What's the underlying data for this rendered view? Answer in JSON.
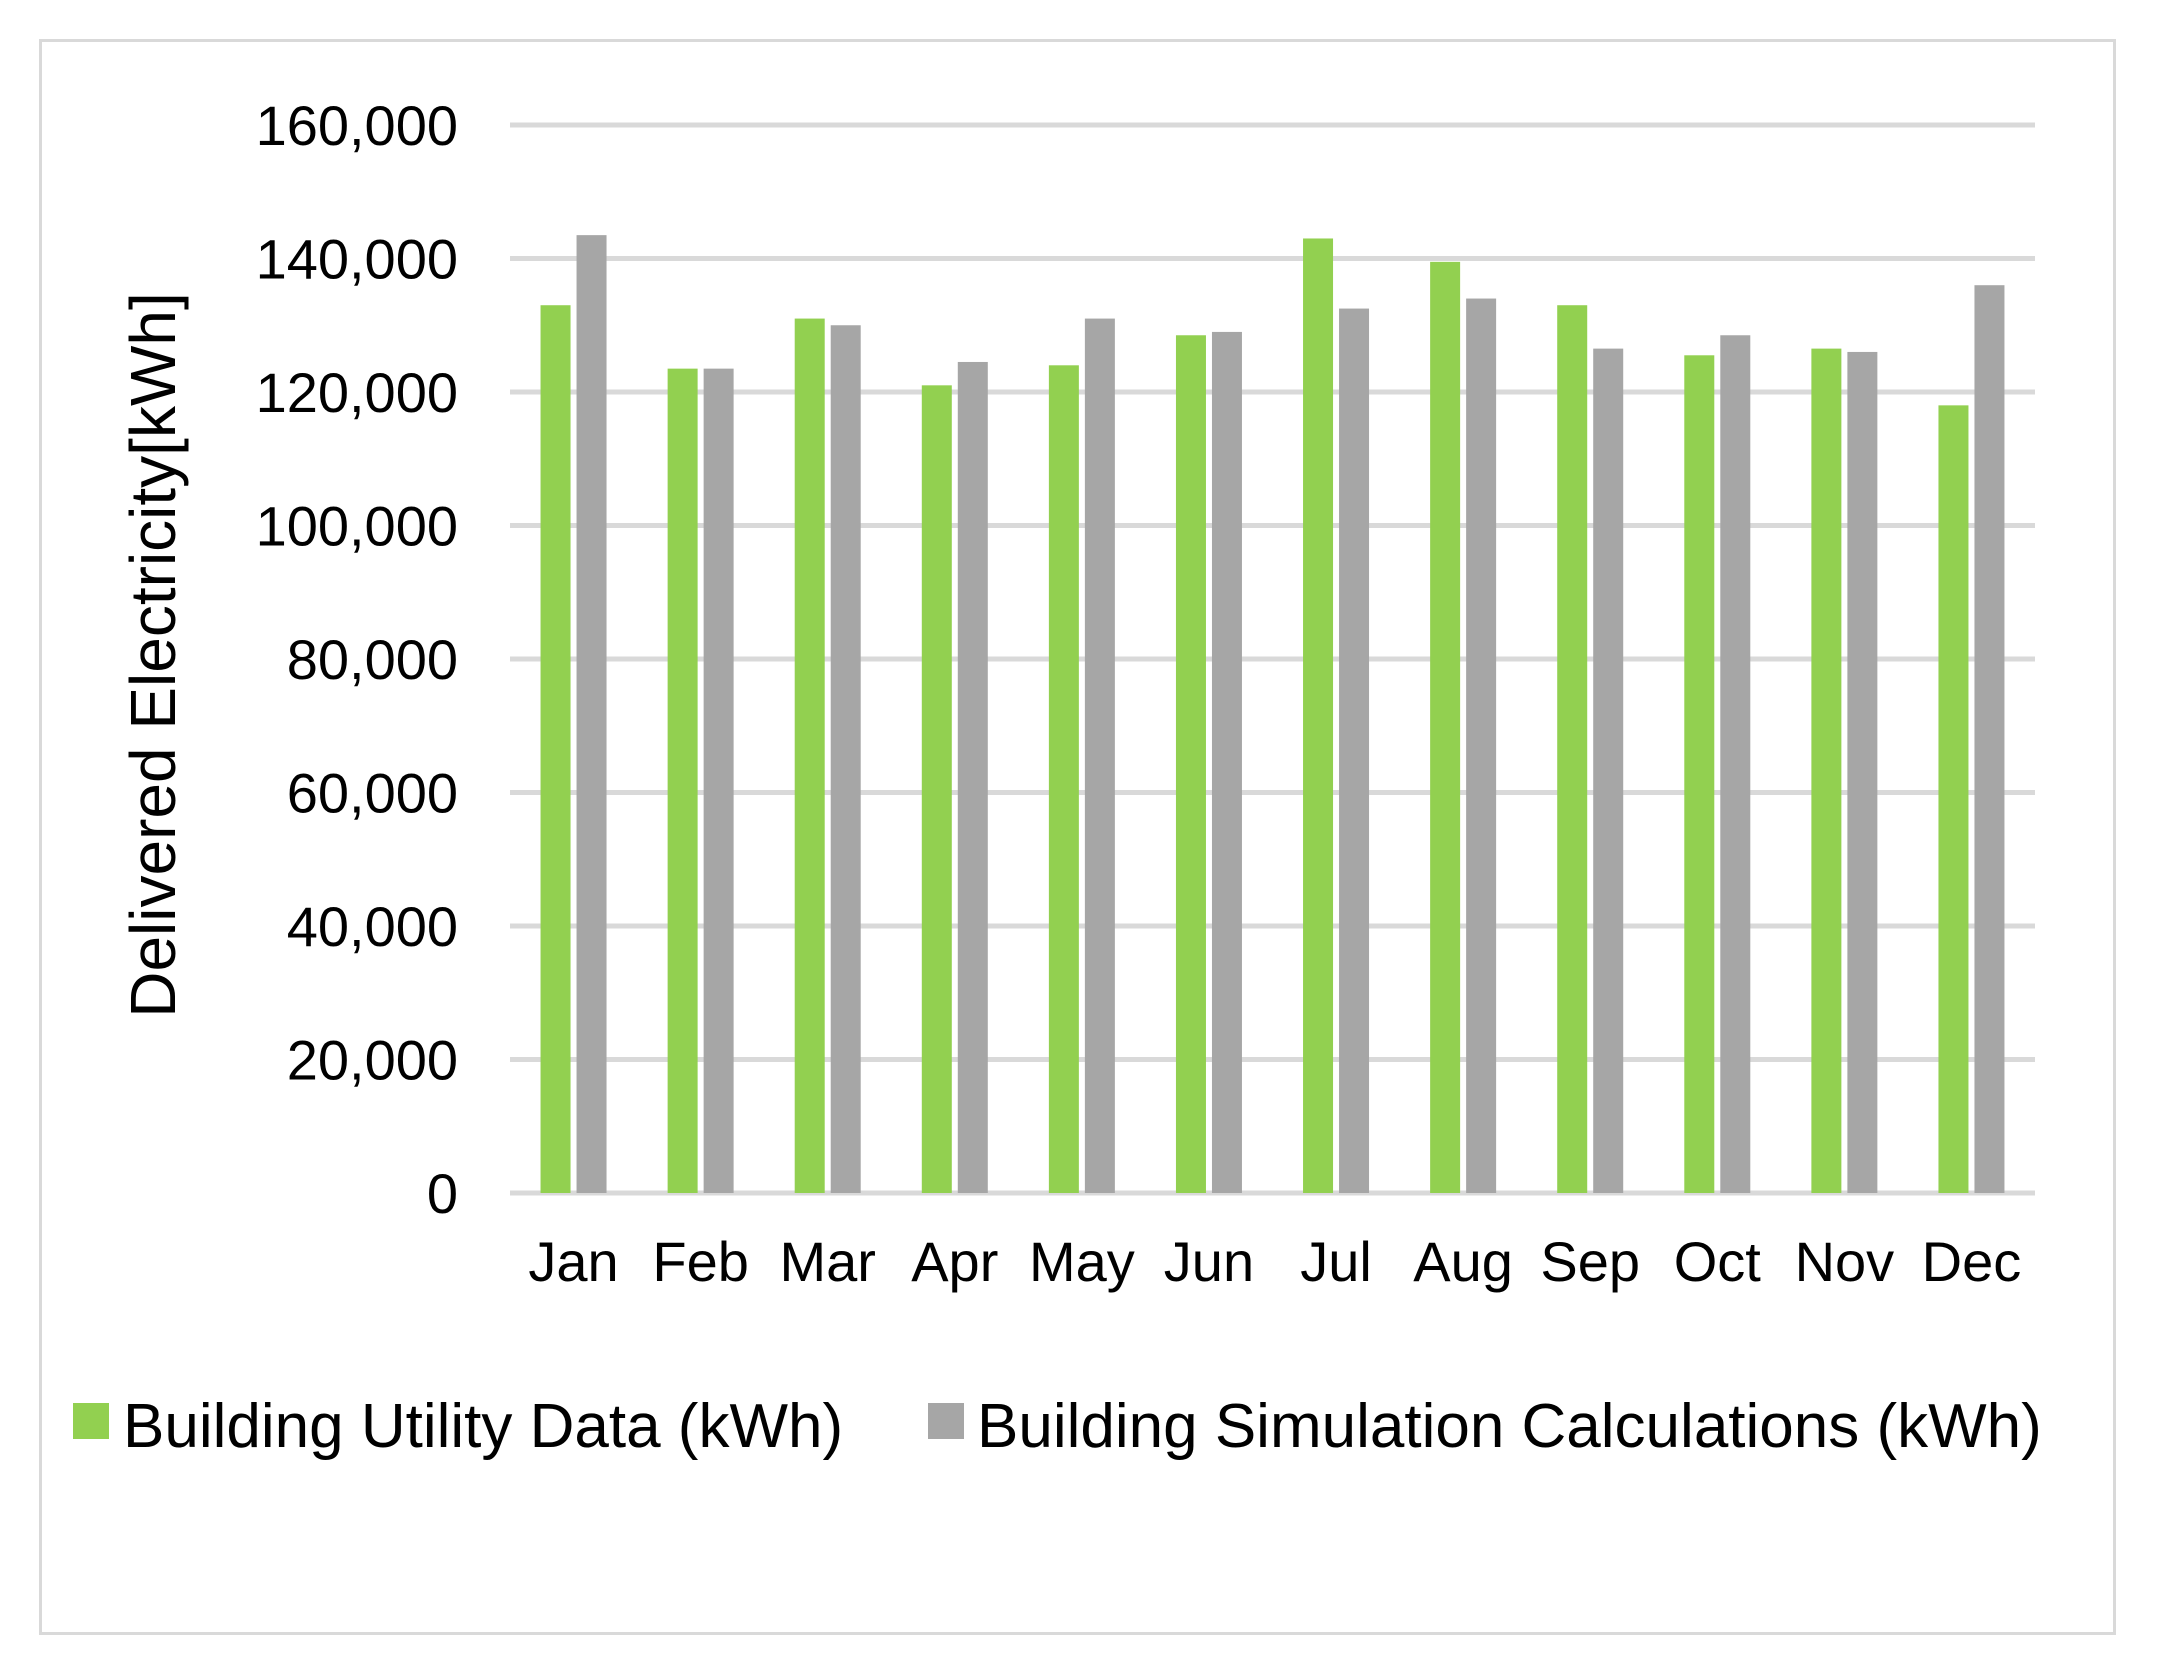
{
  "chart_data": {
    "type": "bar",
    "title": "",
    "xlabel": "",
    "ylabel": "Delivered Electricity[kWh]",
    "ylim": [
      0,
      160000
    ],
    "yticks": [
      0,
      20000,
      40000,
      60000,
      80000,
      100000,
      120000,
      140000,
      160000
    ],
    "ytick_labels": [
      "0",
      "20,000",
      "40,000",
      "60,000",
      "80,000",
      "100,000",
      "120,000",
      "140,000",
      "160,000"
    ],
    "grid": true,
    "legend_position": "bottom",
    "categories": [
      "Jan",
      "Feb",
      "Mar",
      "Apr",
      "May",
      "Jun",
      "Jul",
      "Aug",
      "Sep",
      "Oct",
      "Nov",
      "Dec"
    ],
    "series": [
      {
        "name": "Building Utility Data (kWh)",
        "color": "#92d050",
        "values": [
          133000,
          123500,
          131000,
          121000,
          124000,
          128500,
          143000,
          139500,
          133000,
          125500,
          126500,
          118000
        ]
      },
      {
        "name": "Building Simulation Calculations (kWh)",
        "color": "#a6a6a6",
        "values": [
          143500,
          123500,
          130000,
          124500,
          131000,
          129000,
          132500,
          134000,
          126500,
          128500,
          126000,
          136000
        ]
      }
    ],
    "gridline_color": "#d9d9d9"
  }
}
